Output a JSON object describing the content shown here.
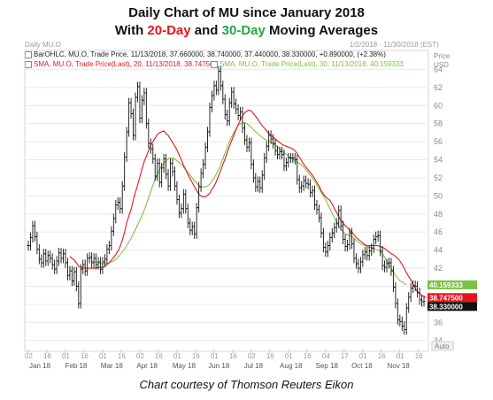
{
  "header": {
    "line1": "Daily Chart of MU since January 2018",
    "line2_pre": "With ",
    "line2_a": "20-Day",
    "line2_mid": " and ",
    "line2_b": "30-Day",
    "line2_post": " Moving Averages"
  },
  "panel": {
    "left_label": "Daily MU.O",
    "right_label": "1/2/2018 - 11/30/2018 (EST)",
    "price_label": "Price",
    "currency_label": "USD",
    "auto_label": "Auto"
  },
  "legend": [
    {
      "text": "BarOHLC, MU.O, Trade Price, 11/13/2018, 37.660000, 38.740000, 37.440000, 38.330000, +0.890000, (+2.38%)",
      "color": "#222222"
    },
    {
      "text": "SMA, MU.O, Trade Price(Last), 20, 11/13/2018, 38.747500",
      "color": "#e8141c"
    },
    {
      "text": "SMA, MU.O, Trade Price(Last), 30, 11/13/2018, 40.159333",
      "color": "#7cc242"
    }
  ],
  "caption": "Chart courtesy of Thomson Reuters Eikon",
  "colors": {
    "price": "#111111",
    "sma20": "#e8141c",
    "sma30": "#7cc242",
    "grid": "#e8e8e8"
  },
  "chart_data": {
    "type": "line",
    "ylim": [
      33,
      66
    ],
    "y_ticks": [
      34,
      36,
      38,
      40,
      42,
      44,
      46,
      48,
      50,
      52,
      54,
      56,
      58,
      60,
      62,
      64
    ],
    "x_ticks": [
      "02",
      "16",
      "01",
      "16",
      "01",
      "16",
      "02",
      "16",
      "01",
      "16",
      "01",
      "16",
      "02",
      "16",
      "01",
      "16",
      "04",
      "17",
      "01",
      "16",
      "01",
      "16"
    ],
    "month_labels": [
      "Jan 18",
      "Feb 18",
      "Mar 18",
      "Apr 18",
      "May 18",
      "Jun 18",
      "Jul 18",
      "Aug 18",
      "Sep 18",
      "Oct 18",
      "Nov 18"
    ],
    "tags": [
      {
        "label": "40.159333",
        "value": 40.159,
        "color": "#7cc242"
      },
      {
        "label": "38.747500",
        "value": 38.748,
        "color": "#e8141c"
      },
      {
        "label": "38.330000",
        "value": 38.33,
        "color": "#111111"
      }
    ],
    "series": [
      {
        "name": "BarOHLC",
        "x_start": 0,
        "x_step": 1,
        "values": [
          44.5,
          45.4,
          46.7,
          45.5,
          44.1,
          43.0,
          42.6,
          43.6,
          42.8,
          43.4,
          43.1,
          42.4,
          41.9,
          42.8,
          43.7,
          43.1,
          43.6,
          42.6,
          41.2,
          41.7,
          40.6,
          41.6,
          40.0,
          38.1,
          41.9,
          42.4,
          41.7,
          43.1,
          43.2,
          42.6,
          43.1,
          42.4,
          42.7,
          41.9,
          42.7,
          43.0,
          44.1,
          44.5,
          46.1,
          47.5,
          49.0,
          49.3,
          48.6,
          51.1,
          54.3,
          57.1,
          60.3,
          59.1,
          56.7,
          60.9,
          62.1,
          58.6,
          60.6,
          61.4,
          58.0,
          55.8,
          55.2,
          54.1,
          52.2,
          53.6,
          51.5,
          53.1,
          54.1,
          52.4,
          51.1,
          53.6,
          52.7,
          51.1,
          49.6,
          48.1,
          48.6,
          50.2,
          48.6,
          47.0,
          46.2,
          46.6,
          45.8,
          48.7,
          51.0,
          52.5,
          53.5,
          55.4,
          57.1,
          59.8,
          61.1,
          62.2,
          61.7,
          63.8,
          62.2,
          60.7,
          59.0,
          58.3,
          60.3,
          61.5,
          60.2,
          59.6,
          58.9,
          59.3,
          57.5,
          56.2,
          55.4,
          55.9,
          53.5,
          52.0,
          51.0,
          51.6,
          50.9,
          52.3,
          54.2,
          55.5,
          56.7,
          56.3,
          55.8,
          55.0,
          54.6,
          54.9,
          54.6,
          53.3,
          53.7,
          54.2,
          54.2,
          54.2,
          54.0,
          51.8,
          50.9,
          51.1,
          51.7,
          51.4,
          51.3,
          50.4,
          50.6,
          49.0,
          48.5,
          47.6,
          45.9,
          44.3,
          43.8,
          44.5,
          45.4,
          45.9,
          46.5,
          47.0,
          48.4,
          46.7,
          45.2,
          44.4,
          44.6,
          45.9,
          44.7,
          43.1,
          42.5,
          42.0,
          42.7,
          43.5,
          43.8,
          43.4,
          43.9,
          44.2,
          45.2,
          45.5,
          45.6,
          43.9,
          42.3,
          42.1,
          42.5,
          42.6,
          41.7,
          39.9,
          38.1,
          36.3,
          36.1,
          35.6,
          35.2,
          37.6,
          38.8,
          39.8,
          40.1,
          40.0,
          39.3,
          38.5,
          38.3,
          38.33
        ]
      },
      {
        "name": "SMA 20",
        "x_start": 19,
        "x_step": 1,
        "values": [
          43.3,
          43.1,
          42.9,
          42.6,
          42.2,
          42.1,
          42.1,
          42.0,
          42.0,
          42.0,
          42.0,
          42.0,
          42.0,
          42.1,
          42.1,
          42.1,
          42.2,
          42.4,
          42.6,
          42.9,
          43.2,
          43.5,
          43.9,
          44.4,
          45.1,
          46.0,
          47.0,
          47.8,
          48.5,
          49.5,
          50.4,
          51.2,
          52.1,
          53.0,
          53.8,
          54.4,
          55.0,
          55.6,
          56.0,
          56.4,
          56.8,
          57.0,
          57.1,
          57.2,
          56.9,
          56.7,
          56.3,
          55.9,
          55.5,
          55.1,
          54.5,
          54.0,
          53.4,
          52.9,
          52.4,
          51.9,
          51.5,
          51.0,
          50.6,
          50.2,
          50.0,
          49.9,
          49.9,
          50.1,
          50.3,
          50.7,
          51.1,
          51.6,
          52.2,
          52.8,
          53.5,
          54.1,
          54.8,
          55.5,
          56.1,
          56.7,
          57.3,
          57.9,
          58.4,
          58.9,
          59.2,
          59.4,
          59.5,
          59.4,
          59.1,
          58.8,
          58.5,
          58.1,
          57.8,
          57.5,
          57.2,
          56.9,
          56.7,
          56.5,
          56.3,
          56.1,
          55.9,
          55.7,
          55.6,
          55.5,
          55.4,
          55.3,
          55.2,
          55.0,
          54.7,
          54.3,
          53.9,
          53.5,
          53.2,
          52.9,
          52.6,
          52.3,
          51.9,
          51.5,
          51.1,
          50.6,
          50.2,
          49.9,
          49.7,
          49.5,
          49.1,
          48.6,
          48.2,
          47.7,
          47.3,
          47.0,
          46.7,
          46.5,
          46.2,
          46.0,
          45.7,
          45.4,
          45.2,
          45.0,
          44.8,
          44.6,
          44.5,
          44.5,
          44.5,
          44.5,
          44.5,
          44.5,
          44.4,
          44.3,
          44.2,
          44.0,
          43.8,
          43.6,
          43.5,
          43.3,
          43.1,
          42.8,
          42.4,
          42.0,
          41.5,
          41.1,
          40.7,
          40.2,
          39.8,
          39.4,
          39.2,
          39.0,
          38.9,
          38.75
        ]
      },
      {
        "name": "SMA 30",
        "x_start": 29,
        "x_step": 1,
        "values": [
          42.8,
          42.7,
          42.7,
          42.6,
          42.5,
          42.5,
          42.5,
          42.5,
          42.6,
          42.7,
          42.8,
          43.0,
          43.2,
          43.5,
          43.8,
          44.1,
          44.5,
          44.9,
          45.3,
          45.8,
          46.3,
          46.8,
          47.3,
          47.8,
          48.4,
          49.1,
          49.8,
          50.5,
          51.2,
          51.8,
          52.4,
          52.9,
          53.3,
          53.6,
          53.9,
          54.1,
          54.2,
          54.2,
          54.1,
          53.9,
          53.7,
          53.5,
          53.2,
          52.9,
          52.6,
          52.3,
          52.0,
          51.7,
          51.4,
          51.2,
          51.0,
          51.0,
          51.0,
          51.1,
          51.3,
          51.6,
          52.0,
          52.4,
          52.9,
          53.5,
          54.1,
          54.8,
          55.4,
          56.0,
          56.5,
          57.0,
          57.4,
          57.8,
          58.0,
          58.1,
          58.1,
          58.0,
          57.8,
          57.6,
          57.3,
          57.1,
          56.9,
          56.7,
          56.5,
          56.3,
          56.2,
          56.1,
          55.9,
          55.8,
          55.6,
          55.4,
          55.2,
          55.0,
          54.8,
          54.6,
          54.4,
          54.2,
          54.1,
          53.9,
          53.7,
          53.6,
          53.4,
          53.2,
          52.9,
          52.6,
          52.3,
          52.0,
          51.6,
          51.2,
          50.8,
          50.4,
          50.0,
          49.6,
          49.1,
          48.6,
          48.1,
          47.6,
          47.1,
          46.7,
          46.3,
          46.0,
          45.8,
          45.7,
          45.6,
          45.5,
          45.3,
          45.1,
          44.9,
          44.7,
          44.6,
          44.5,
          44.4,
          44.3,
          44.3,
          44.2,
          44.1,
          44.0,
          43.9,
          43.6,
          43.2,
          42.8,
          42.4,
          42.0,
          41.6,
          41.2,
          40.9,
          40.6,
          40.5,
          40.3,
          40.16
        ]
      }
    ]
  }
}
